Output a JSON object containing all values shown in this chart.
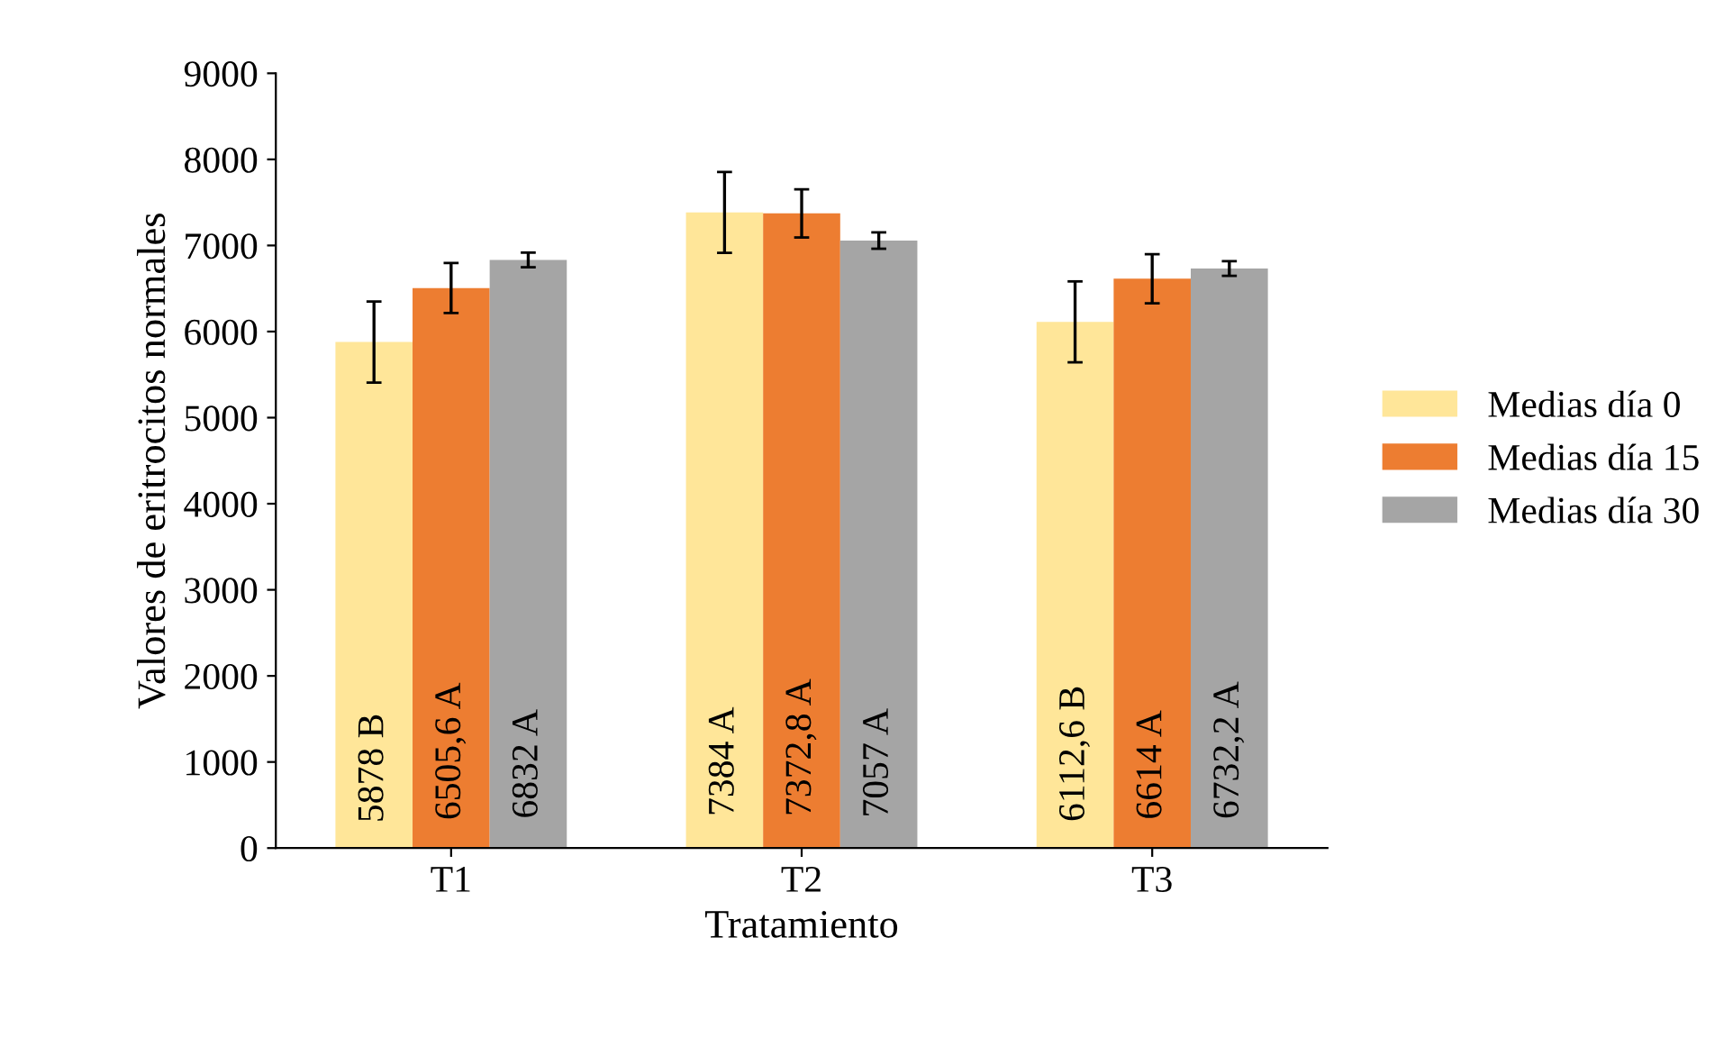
{
  "chart_data": {
    "type": "bar",
    "xlabel": "Tratamiento",
    "ylabel": "Valores de eritrocitos normales",
    "categories": [
      "T1",
      "T2",
      "T3"
    ],
    "series": [
      {
        "name": "Medias día 0",
        "color": "#ffe699",
        "values": [
          5878,
          7384,
          6112.6
        ],
        "errors": [
          470,
          470,
          470
        ],
        "value_labels": [
          "5878 B",
          "7384 A",
          "6112,6 B"
        ]
      },
      {
        "name": "Medias día 15",
        "color": "#ed7d31",
        "values": [
          6505.6,
          7372.8,
          6614
        ],
        "errors": [
          290,
          280,
          285
        ],
        "value_labels": [
          "6505,6 A",
          "7372,8 A",
          "6614 A"
        ]
      },
      {
        "name": "Medias día 30",
        "color": "#a5a5a5",
        "values": [
          6832,
          7057,
          6732.2
        ],
        "errors": [
          85,
          95,
          85
        ],
        "value_labels": [
          "6832 A",
          "7057 A",
          "6732,2 A"
        ]
      }
    ],
    "ylim": [
      0,
      9000
    ],
    "yticks": [
      0,
      1000,
      2000,
      3000,
      4000,
      5000,
      6000,
      7000,
      8000,
      9000
    ],
    "grid": false,
    "legend": "right"
  }
}
